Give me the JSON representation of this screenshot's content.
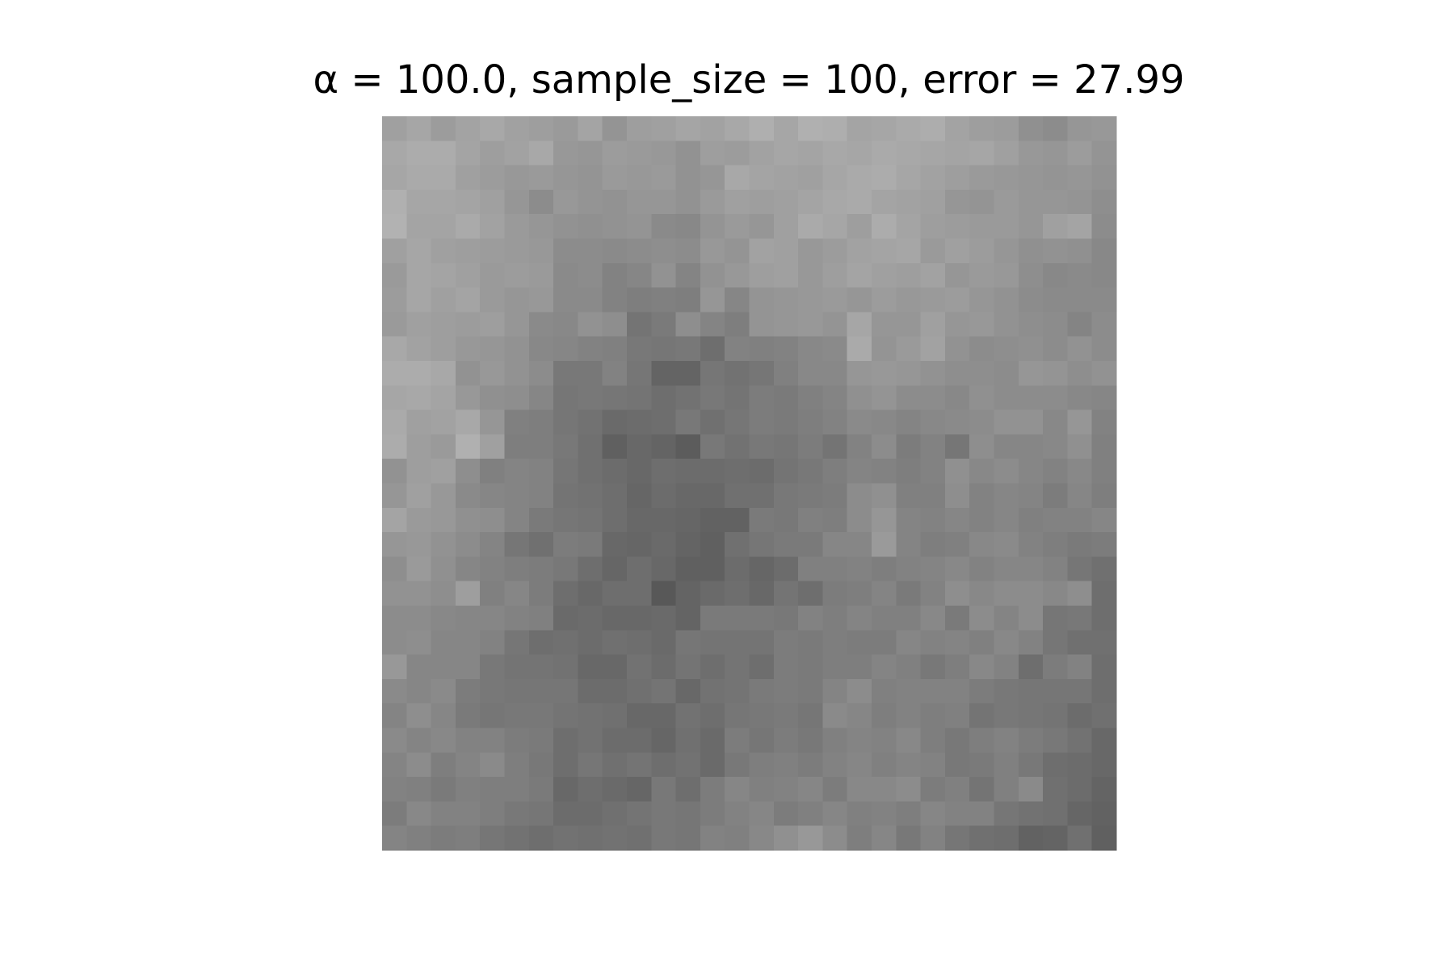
{
  "chart_data": {
    "type": "heatmap",
    "title": "α = 100.0, sample_size = 100, error = 27.99",
    "cmap": "gray",
    "vlim": [
      0,
      255
    ],
    "values": [
      [
        160,
        166,
        156,
        163,
        168,
        161,
        158,
        154,
        164,
        148,
        158,
        160,
        165,
        162,
        168,
        175,
        166,
        176,
        174,
        164,
        166,
        170,
        173,
        163,
        158,
        156,
        144,
        140,
        150,
        152
      ],
      [
        168,
        172,
        172,
        164,
        158,
        162,
        168,
        152,
        150,
        156,
        154,
        152,
        146,
        158,
        156,
        162,
        166,
        164,
        168,
        166,
        170,
        168,
        166,
        164,
        166,
        160,
        152,
        150,
        156,
        148
      ],
      [
        166,
        170,
        170,
        160,
        156,
        152,
        154,
        150,
        148,
        154,
        152,
        154,
        146,
        150,
        168,
        164,
        162,
        160,
        166,
        170,
        172,
        166,
        162,
        158,
        154,
        152,
        150,
        148,
        150,
        146
      ],
      [
        176,
        166,
        166,
        164,
        160,
        150,
        140,
        152,
        148,
        146,
        150,
        150,
        146,
        154,
        160,
        158,
        160,
        164,
        168,
        170,
        164,
        162,
        160,
        150,
        148,
        154,
        150,
        150,
        148,
        142
      ],
      [
        178,
        164,
        164,
        170,
        162,
        154,
        150,
        146,
        144,
        146,
        148,
        138,
        136,
        148,
        154,
        150,
        160,
        170,
        166,
        158,
        172,
        164,
        158,
        156,
        154,
        154,
        150,
        160,
        164,
        140
      ],
      [
        160,
        166,
        160,
        158,
        156,
        154,
        152,
        140,
        140,
        138,
        140,
        142,
        140,
        152,
        148,
        162,
        160,
        152,
        156,
        162,
        164,
        166,
        154,
        160,
        156,
        150,
        144,
        146,
        144,
        136
      ],
      [
        154,
        166,
        164,
        160,
        154,
        156,
        154,
        138,
        140,
        130,
        134,
        146,
        132,
        146,
        152,
        158,
        160,
        152,
        158,
        164,
        160,
        158,
        162,
        150,
        154,
        152,
        142,
        136,
        138,
        136
      ],
      [
        156,
        166,
        160,
        164,
        154,
        150,
        152,
        138,
        138,
        130,
        126,
        128,
        126,
        150,
        134,
        148,
        150,
        152,
        154,
        150,
        156,
        152,
        154,
        156,
        150,
        146,
        140,
        138,
        138,
        138
      ],
      [
        154,
        160,
        158,
        156,
        158,
        150,
        138,
        136,
        146,
        142,
        116,
        122,
        142,
        132,
        126,
        148,
        150,
        152,
        148,
        166,
        150,
        150,
        160,
        150,
        152,
        146,
        142,
        140,
        132,
        140
      ],
      [
        168,
        162,
        158,
        152,
        150,
        146,
        136,
        134,
        130,
        128,
        120,
        118,
        120,
        110,
        130,
        128,
        130,
        136,
        138,
        170,
        148,
        154,
        162,
        146,
        140,
        142,
        144,
        140,
        146,
        140
      ],
      [
        172,
        172,
        168,
        146,
        152,
        146,
        140,
        120,
        120,
        130,
        118,
        100,
        100,
        118,
        114,
        118,
        128,
        136,
        136,
        150,
        152,
        150,
        146,
        142,
        142,
        140,
        150,
        148,
        142,
        146
      ],
      [
        166,
        168,
        164,
        152,
        144,
        142,
        134,
        118,
        120,
        118,
        116,
        110,
        114,
        120,
        116,
        124,
        122,
        128,
        132,
        144,
        148,
        140,
        140,
        136,
        144,
        140,
        140,
        140,
        136,
        134
      ],
      [
        170,
        160,
        162,
        168,
        150,
        128,
        126,
        118,
        114,
        106,
        108,
        110,
        120,
        112,
        118,
        124,
        122,
        126,
        130,
        138,
        136,
        132,
        136,
        138,
        140,
        146,
        146,
        136,
        150,
        130
      ],
      [
        172,
        158,
        154,
        176,
        160,
        126,
        126,
        120,
        112,
        96,
        104,
        100,
        92,
        120,
        114,
        120,
        118,
        124,
        116,
        130,
        140,
        124,
        130,
        118,
        142,
        134,
        134,
        136,
        144,
        128
      ],
      [
        146,
        158,
        160,
        142,
        128,
        132,
        130,
        118,
        112,
        108,
        104,
        110,
        108,
        108,
        110,
        108,
        116,
        120,
        126,
        132,
        130,
        126,
        130,
        144,
        136,
        140,
        134,
        130,
        136,
        128
      ],
      [
        150,
        160,
        152,
        138,
        134,
        132,
        130,
        116,
        114,
        110,
        102,
        108,
        104,
        104,
        112,
        112,
        120,
        122,
        124,
        140,
        144,
        128,
        128,
        142,
        130,
        134,
        132,
        124,
        134,
        126
      ],
      [
        164,
        154,
        152,
        144,
        142,
        132,
        122,
        118,
        116,
        110,
        104,
        104,
        102,
        98,
        98,
        122,
        120,
        128,
        126,
        140,
        150,
        132,
        130,
        134,
        130,
        134,
        128,
        130,
        130,
        134
      ],
      [
        150,
        152,
        146,
        140,
        132,
        118,
        112,
        124,
        122,
        104,
        102,
        106,
        100,
        96,
        112,
        118,
        122,
        122,
        134,
        134,
        154,
        132,
        126,
        128,
        136,
        138,
        130,
        126,
        122,
        124
      ],
      [
        142,
        154,
        144,
        134,
        130,
        126,
        124,
        120,
        110,
        102,
        110,
        104,
        96,
        96,
        108,
        102,
        108,
        128,
        128,
        130,
        126,
        130,
        132,
        136,
        130,
        134,
        134,
        130,
        118,
        112
      ],
      [
        146,
        146,
        142,
        158,
        128,
        134,
        124,
        110,
        104,
        110,
        110,
        88,
        100,
        106,
        110,
        104,
        116,
        110,
        124,
        126,
        132,
        122,
        130,
        142,
        136,
        140,
        140,
        136,
        142,
        110
      ],
      [
        140,
        140,
        136,
        134,
        134,
        130,
        128,
        106,
        108,
        104,
        104,
        106,
        100,
        122,
        122,
        122,
        120,
        130,
        126,
        132,
        128,
        128,
        136,
        122,
        140,
        132,
        140,
        118,
        120,
        110
      ],
      [
        140,
        142,
        134,
        134,
        130,
        118,
        110,
        112,
        108,
        112,
        110,
        106,
        118,
        116,
        116,
        116,
        124,
        122,
        126,
        124,
        124,
        134,
        130,
        132,
        128,
        136,
        130,
        118,
        112,
        112
      ],
      [
        152,
        134,
        134,
        134,
        120,
        116,
        116,
        114,
        104,
        104,
        114,
        108,
        116,
        110,
        116,
        110,
        124,
        122,
        126,
        126,
        132,
        128,
        120,
        126,
        136,
        130,
        110,
        124,
        130,
        110
      ],
      [
        138,
        134,
        138,
        124,
        120,
        118,
        118,
        118,
        108,
        108,
        112,
        116,
        104,
        114,
        116,
        122,
        124,
        122,
        132,
        140,
        128,
        130,
        130,
        130,
        124,
        120,
        118,
        118,
        118,
        110
      ],
      [
        132,
        142,
        134,
        122,
        118,
        120,
        120,
        116,
        114,
        112,
        104,
        104,
        114,
        110,
        118,
        120,
        122,
        118,
        138,
        134,
        126,
        130,
        126,
        128,
        116,
        120,
        118,
        116,
        108,
        112
      ],
      [
        138,
        132,
        136,
        130,
        130,
        124,
        122,
        110,
        114,
        108,
        108,
        102,
        112,
        106,
        124,
        118,
        124,
        120,
        128,
        132,
        130,
        136,
        126,
        120,
        126,
        130,
        124,
        120,
        114,
        104
      ],
      [
        132,
        140,
        126,
        132,
        138,
        126,
        120,
        110,
        118,
        112,
        116,
        110,
        114,
        106,
        120,
        126,
        128,
        124,
        130,
        134,
        128,
        132,
        130,
        120,
        122,
        128,
        120,
        110,
        108,
        104
      ],
      [
        130,
        128,
        122,
        128,
        126,
        126,
        122,
        104,
        110,
        106,
        102,
        120,
        110,
        124,
        134,
        128,
        130,
        134,
        124,
        136,
        136,
        140,
        124,
        128,
        116,
        128,
        138,
        112,
        108,
        100
      ],
      [
        124,
        136,
        130,
        130,
        126,
        120,
        118,
        108,
        108,
        112,
        116,
        120,
        118,
        124,
        130,
        134,
        124,
        128,
        134,
        128,
        130,
        126,
        134,
        130,
        130,
        118,
        114,
        112,
        102,
        98
      ],
      [
        132,
        128,
        124,
        126,
        118,
        114,
        110,
        114,
        112,
        114,
        112,
        120,
        118,
        130,
        128,
        136,
        144,
        152,
        140,
        126,
        134,
        120,
        130,
        118,
        112,
        110,
        98,
        100,
        112,
        96
      ]
    ]
  }
}
